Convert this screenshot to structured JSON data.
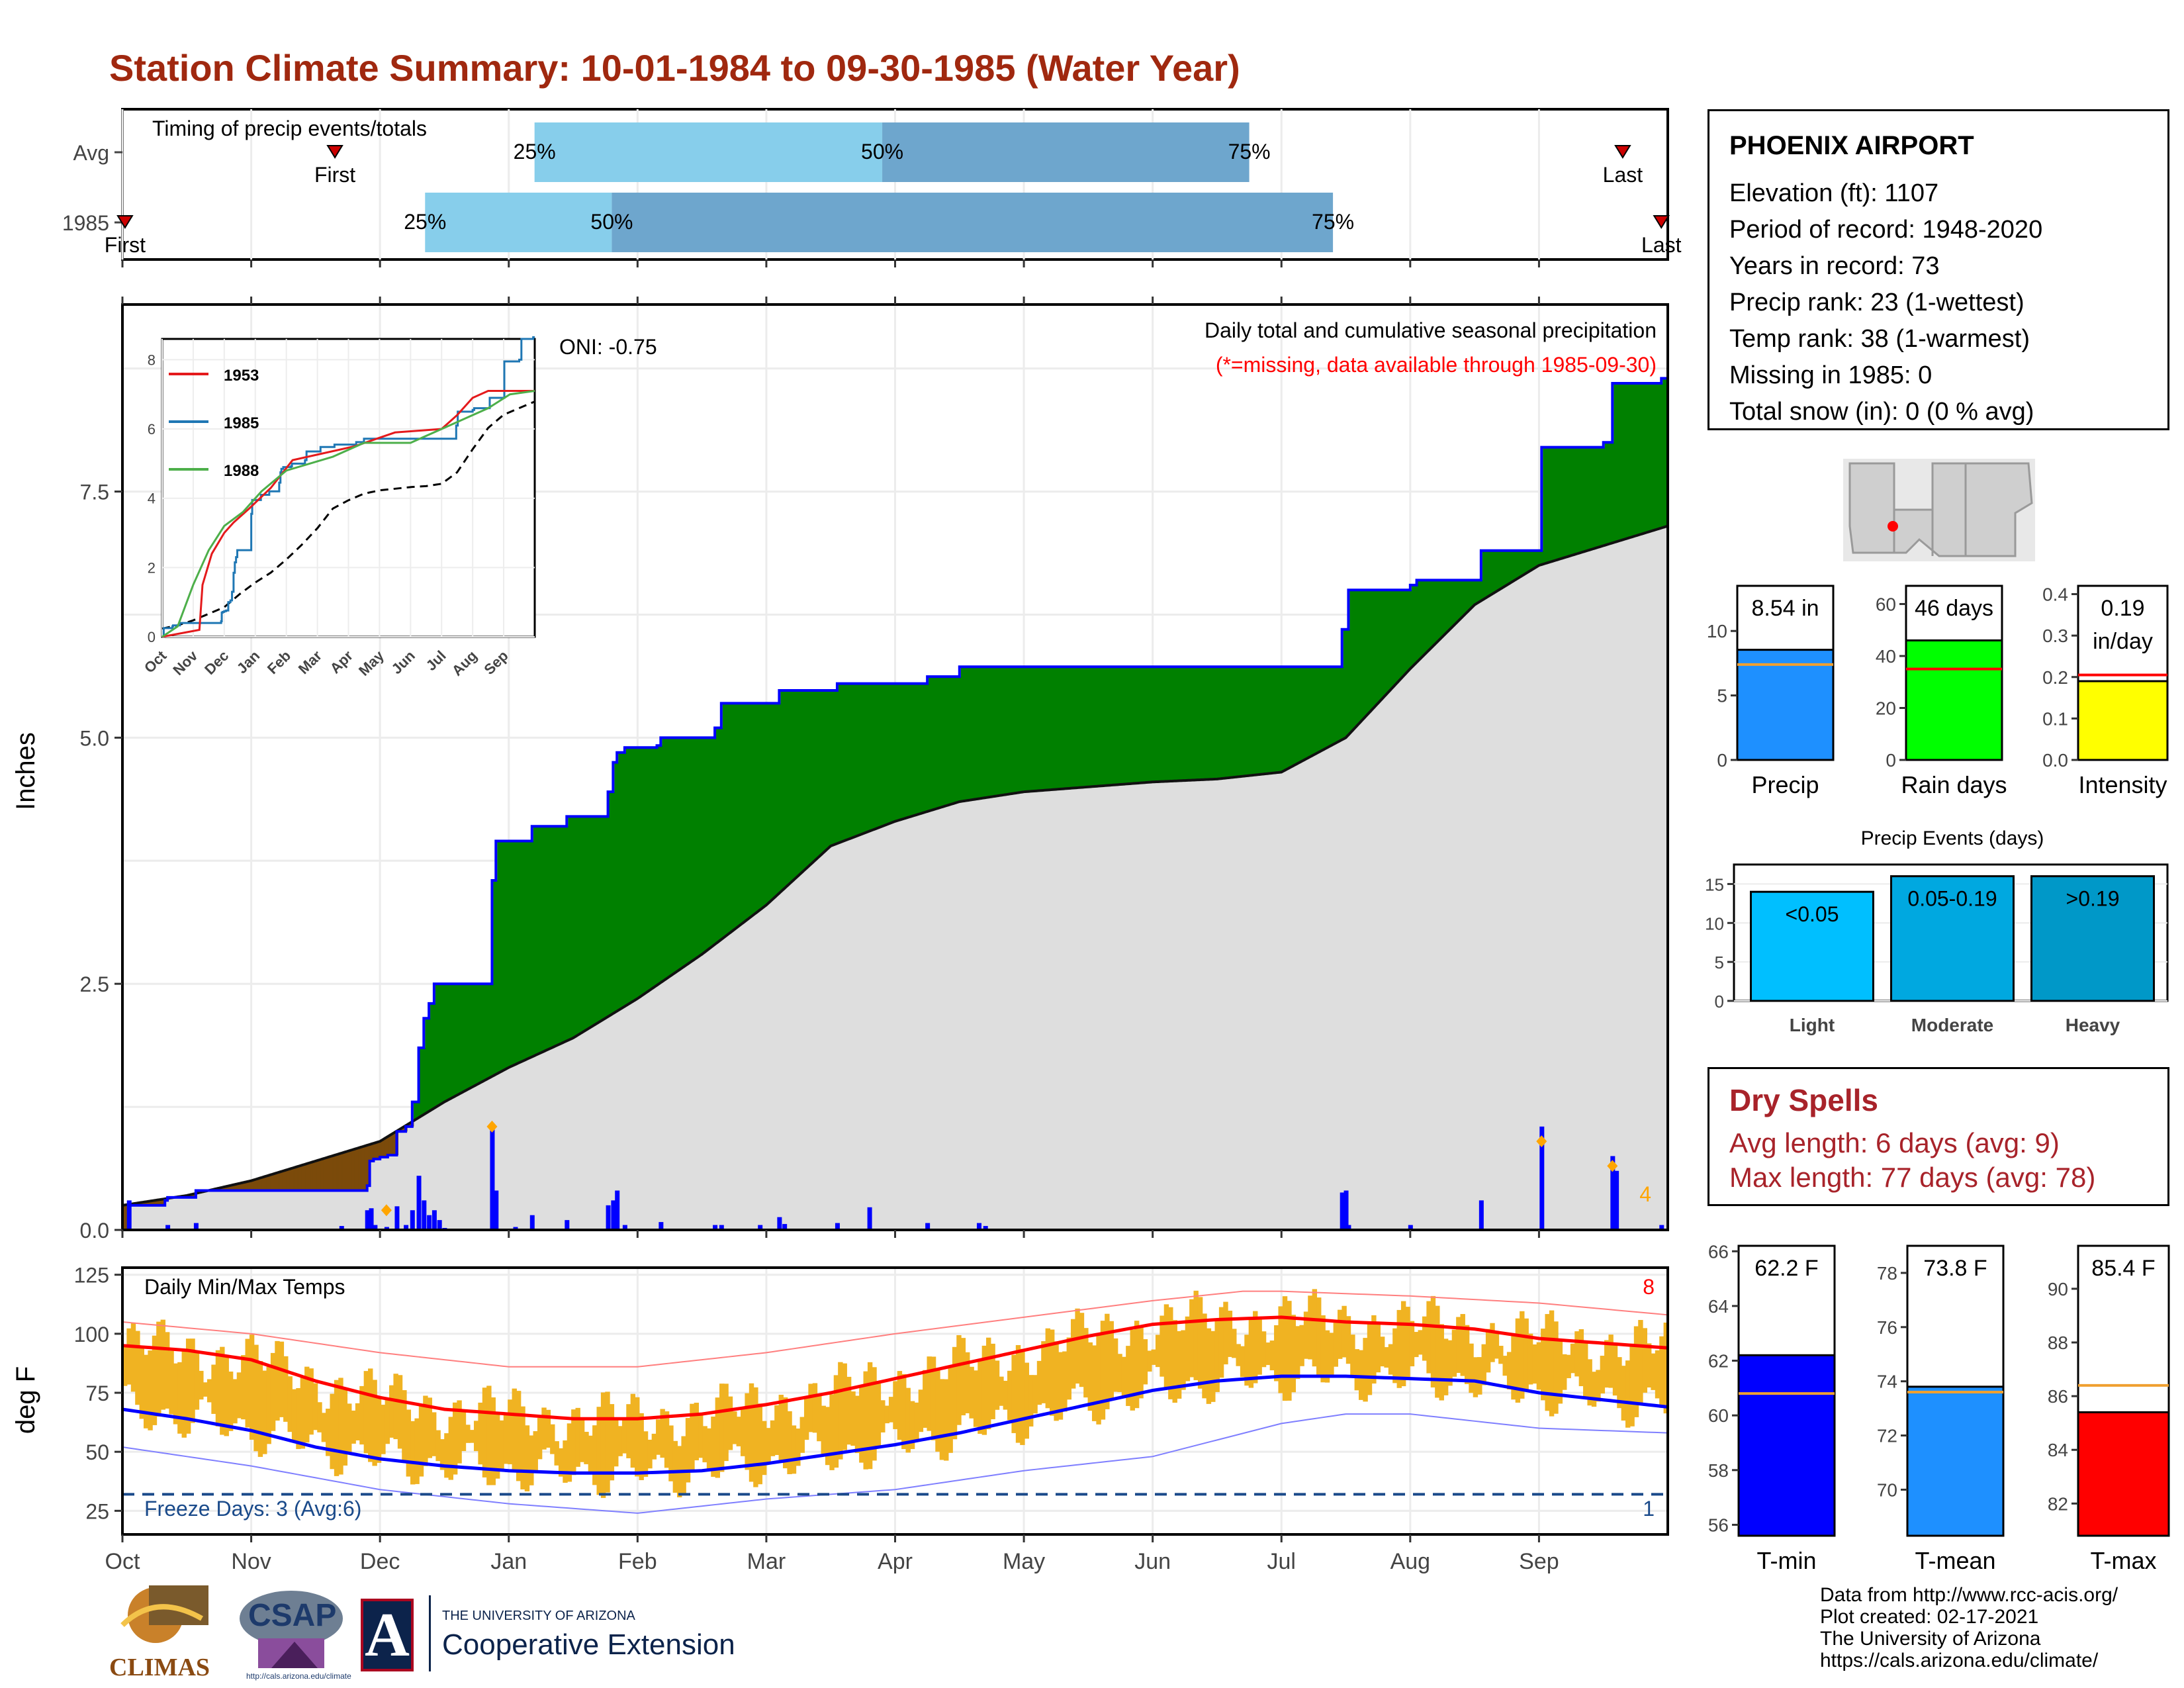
{
  "title": "Station Climate Summary: 10-01-1984 to 09-30-1985 (Water Year)",
  "station": {
    "name": "PHOENIX AIRPORT",
    "lines": [
      "Elevation (ft): 1107",
      "Period of record: 1948-2020",
      "Years in record: 73",
      "Precip rank: 23 (1-wettest)",
      "Temp rank: 38 (1-warmest)",
      "Missing in 1985: 0",
      "Total snow (in): 0 (0 % avg)"
    ]
  },
  "dry_spells": {
    "title": "Dry Spells",
    "avg_length": "Avg length: 6 days (avg: 9)",
    "max_length": "Max length: 77 days (avg: 78)"
  },
  "credits": [
    "Data from http://www.rcc-acis.org/",
    "Plot created: 02-17-2021",
    "The University of Arizona",
    "https://cals.arizona.edu/climate/"
  ],
  "logos": {
    "climas": "CLIMAS",
    "csap": "CSAP",
    "csap_url": "http://cals.arizona.edu/climate",
    "ua_small": "THE UNIVERSITY OF ARIZONA",
    "ua_big": "Cooperative Extension",
    "ua_letter": "A"
  },
  "colors": {
    "title": "#a0280f",
    "green": "#008000",
    "brown": "#7b4a0a",
    "blue": "#0000ff",
    "normal_fill": "#dedede",
    "band_light": "#87ceeb",
    "band_dark": "#6ea6cd",
    "temp_bar": "#f0b322",
    "red": "#ff0000",
    "dry": "#a8232a"
  },
  "chart_data": [
    {
      "id": "timing",
      "type": "bar",
      "title": "Timing of precip events/totals",
      "rows": [
        {
          "label": "Avg",
          "first_month": 1.65,
          "first_text": "First",
          "last_month": 11.65,
          "last_text": "Last",
          "q25": 3.2,
          "q50": 5.9,
          "q75": 8.75
        },
        {
          "label": "1985",
          "first_month": 0.02,
          "first_text": "First",
          "last_month": 11.95,
          "last_text": "Last",
          "q25": 2.35,
          "q50": 3.8,
          "q75": 9.4
        }
      ],
      "quantile_labels": [
        "25%",
        "50%",
        "75%"
      ],
      "x_ticks": [
        "Oct",
        "Nov",
        "Dec",
        "Jan",
        "Feb",
        "Mar",
        "Apr",
        "May",
        "Jun",
        "Jul",
        "Aug",
        "Sep"
      ]
    },
    {
      "id": "precip",
      "type": "area",
      "title": "Daily total and cumulative seasonal precipitation",
      "subtitle": "(*=missing, data available through 1985-09-30)",
      "ylabel": "Inches",
      "ylim": [
        0,
        9.4
      ],
      "yticks": [
        0.0,
        2.5,
        5.0,
        7.5
      ],
      "ytick_labels": [
        "0.0",
        "2.5",
        "5.0",
        "7.5"
      ],
      "oni": "ONI: -0.75",
      "extreme_count": "4",
      "x_ticks": [
        "Oct",
        "Nov",
        "Dec",
        "Jan",
        "Feb",
        "Mar",
        "Apr",
        "May",
        "Jun",
        "Jul",
        "Aug",
        "Sep"
      ],
      "observed_cumulative": [
        [
          0,
          0
        ],
        [
          0.05,
          0.25
        ],
        [
          0.33,
          0.3
        ],
        [
          0.35,
          0.33
        ],
        [
          0.55,
          0.33
        ],
        [
          0.57,
          0.4
        ],
        [
          1.9,
          0.45
        ],
        [
          1.92,
          0.7
        ],
        [
          1.95,
          0.72
        ],
        [
          2.0,
          0.74
        ],
        [
          2.06,
          0.76
        ],
        [
          2.13,
          1.0
        ],
        [
          2.2,
          1.05
        ],
        [
          2.25,
          1.3
        ],
        [
          2.3,
          1.85
        ],
        [
          2.34,
          2.15
        ],
        [
          2.38,
          2.3
        ],
        [
          2.42,
          2.5
        ],
        [
          2.85,
          2.5
        ],
        [
          2.87,
          3.55
        ],
        [
          2.9,
          3.95
        ],
        [
          3.15,
          3.95
        ],
        [
          3.18,
          4.1
        ],
        [
          3.45,
          4.2
        ],
        [
          3.75,
          4.2
        ],
        [
          3.77,
          4.45
        ],
        [
          3.81,
          4.75
        ],
        [
          3.84,
          4.85
        ],
        [
          3.9,
          4.9
        ],
        [
          4.15,
          4.92
        ],
        [
          4.18,
          5.0
        ],
        [
          4.6,
          5.1
        ],
        [
          4.65,
          5.35
        ],
        [
          4.95,
          5.35
        ],
        [
          5.1,
          5.48
        ],
        [
          5.5,
          5.48
        ],
        [
          5.55,
          5.55
        ],
        [
          5.8,
          5.55
        ],
        [
          6.1,
          5.55
        ],
        [
          6.25,
          5.62
        ],
        [
          6.5,
          5.72
        ],
        [
          7.0,
          5.72
        ],
        [
          7.5,
          5.72
        ],
        [
          8.0,
          5.72
        ],
        [
          8.1,
          5.72
        ],
        [
          9.45,
          5.72
        ],
        [
          9.47,
          6.1
        ],
        [
          9.52,
          6.5
        ],
        [
          10.0,
          6.55
        ],
        [
          10.05,
          6.6
        ],
        [
          10.5,
          6.6
        ],
        [
          10.55,
          6.9
        ],
        [
          11.0,
          6.9
        ],
        [
          11.02,
          7.95
        ],
        [
          11.45,
          7.95
        ],
        [
          11.5,
          8.0
        ],
        [
          11.57,
          8.6
        ],
        [
          11.6,
          8.6
        ],
        [
          11.95,
          8.65
        ],
        [
          12,
          8.65
        ]
      ],
      "normal_cumulative": [
        [
          0,
          0.25
        ],
        [
          0.5,
          0.35
        ],
        [
          1,
          0.5
        ],
        [
          1.5,
          0.7
        ],
        [
          2,
          0.9
        ],
        [
          2.5,
          1.3
        ],
        [
          3,
          1.65
        ],
        [
          3.5,
          1.95
        ],
        [
          4,
          2.35
        ],
        [
          4.5,
          2.8
        ],
        [
          5,
          3.3
        ],
        [
          5.5,
          3.9
        ],
        [
          6,
          4.15
        ],
        [
          6.5,
          4.35
        ],
        [
          7,
          4.45
        ],
        [
          7.5,
          4.5
        ],
        [
          8,
          4.55
        ],
        [
          8.5,
          4.58
        ],
        [
          9,
          4.65
        ],
        [
          9.5,
          5.0
        ],
        [
          10,
          5.7
        ],
        [
          10.5,
          6.35
        ],
        [
          11,
          6.75
        ],
        [
          11.5,
          6.95
        ],
        [
          12,
          7.15
        ]
      ],
      "daily_bars": [
        [
          0.05,
          0.3
        ],
        [
          0.35,
          0.05
        ],
        [
          0.57,
          0.07
        ],
        [
          1.7,
          0.04
        ],
        [
          1.9,
          0.2
        ],
        [
          1.93,
          0.22
        ],
        [
          1.96,
          0.05
        ],
        [
          2.05,
          0.03
        ],
        [
          2.13,
          0.24
        ],
        [
          2.2,
          0.05
        ],
        [
          2.25,
          0.2
        ],
        [
          2.3,
          0.55
        ],
        [
          2.34,
          0.3
        ],
        [
          2.38,
          0.15
        ],
        [
          2.42,
          0.2
        ],
        [
          2.46,
          0.1
        ],
        [
          2.5,
          0.02
        ],
        [
          2.87,
          1.05
        ],
        [
          2.9,
          0.4
        ],
        [
          3.05,
          0.03
        ],
        [
          3.18,
          0.15
        ],
        [
          3.45,
          0.1
        ],
        [
          3.77,
          0.25
        ],
        [
          3.81,
          0.3
        ],
        [
          3.84,
          0.4
        ],
        [
          3.9,
          0.05
        ],
        [
          4.18,
          0.08
        ],
        [
          4.6,
          0.05
        ],
        [
          4.65,
          0.05
        ],
        [
          4.95,
          0.05
        ],
        [
          5.1,
          0.13
        ],
        [
          5.14,
          0.06
        ],
        [
          5.55,
          0.07
        ],
        [
          5.8,
          0.23
        ],
        [
          6.25,
          0.07
        ],
        [
          6.65,
          0.07
        ],
        [
          6.7,
          0.04
        ],
        [
          9.47,
          0.38
        ],
        [
          9.5,
          0.4
        ],
        [
          9.52,
          0.05
        ],
        [
          10.0,
          0.05
        ],
        [
          10.55,
          0.3
        ],
        [
          11.02,
          1.05
        ],
        [
          11.57,
          0.75
        ],
        [
          11.6,
          0.6
        ],
        [
          11.95,
          0.05
        ]
      ],
      "extreme_markers": [
        [
          2.05,
          0.2
        ],
        [
          2.87,
          1.05
        ],
        [
          11.02,
          0.9
        ],
        [
          11.57,
          0.65
        ]
      ]
    },
    {
      "id": "temps",
      "type": "bar",
      "title": "Daily Min/Max Temps",
      "ylabel": "deg F",
      "ylim": [
        15,
        128
      ],
      "yticks": [
        25,
        50,
        75,
        100,
        125
      ],
      "freeze_line": 32,
      "freeze_label": "Freeze Days: 3 (Avg:6)",
      "hot_count": "8",
      "cold_count": "1",
      "x_ticks": [
        "Oct",
        "Nov",
        "Dec",
        "Jan",
        "Feb",
        "Mar",
        "Apr",
        "May",
        "Jun",
        "Jul",
        "Aug",
        "Sep"
      ],
      "avg_max": [
        [
          0,
          95
        ],
        [
          0.5,
          93
        ],
        [
          1,
          89
        ],
        [
          1.5,
          80
        ],
        [
          2,
          73
        ],
        [
          2.5,
          68
        ],
        [
          3,
          66
        ],
        [
          3.5,
          64
        ],
        [
          4,
          64
        ],
        [
          4.5,
          66
        ],
        [
          5,
          70
        ],
        [
          5.5,
          75
        ],
        [
          6,
          81
        ],
        [
          6.5,
          87
        ],
        [
          7,
          93
        ],
        [
          7.5,
          99
        ],
        [
          8,
          104
        ],
        [
          8.5,
          106
        ],
        [
          9,
          107
        ],
        [
          9.5,
          105
        ],
        [
          10,
          104
        ],
        [
          10.5,
          102
        ],
        [
          11,
          98
        ],
        [
          11.5,
          96
        ],
        [
          12,
          94
        ]
      ],
      "avg_min": [
        [
          0,
          68
        ],
        [
          0.5,
          64
        ],
        [
          1,
          59
        ],
        [
          1.5,
          52
        ],
        [
          2,
          47
        ],
        [
          2.5,
          44
        ],
        [
          3,
          42
        ],
        [
          3.5,
          41
        ],
        [
          4,
          41
        ],
        [
          4.5,
          42
        ],
        [
          5,
          45
        ],
        [
          5.5,
          49
        ],
        [
          6,
          53
        ],
        [
          6.5,
          58
        ],
        [
          7,
          64
        ],
        [
          7.5,
          70
        ],
        [
          8,
          76
        ],
        [
          8.5,
          80
        ],
        [
          9,
          82
        ],
        [
          9.5,
          82
        ],
        [
          10,
          81
        ],
        [
          10.5,
          80
        ],
        [
          11,
          75
        ],
        [
          11.5,
          72
        ],
        [
          12,
          69
        ]
      ],
      "record_max": [
        [
          0,
          105
        ],
        [
          1,
          100
        ],
        [
          2,
          92
        ],
        [
          3,
          86
        ],
        [
          4,
          86
        ],
        [
          5,
          92
        ],
        [
          6,
          100
        ],
        [
          7,
          107
        ],
        [
          8,
          114
        ],
        [
          8.7,
          118
        ],
        [
          9,
          118
        ],
        [
          9.5,
          117
        ],
        [
          10,
          116
        ],
        [
          11,
          113
        ],
        [
          12,
          108
        ]
      ],
      "record_min": [
        [
          0,
          52
        ],
        [
          1,
          44
        ],
        [
          2,
          34
        ],
        [
          3,
          28
        ],
        [
          4,
          24
        ],
        [
          5,
          30
        ],
        [
          6,
          34
        ],
        [
          7,
          42
        ],
        [
          8,
          48
        ],
        [
          9,
          62
        ],
        [
          9.5,
          66
        ],
        [
          10,
          66
        ],
        [
          11,
          60
        ],
        [
          12,
          58
        ]
      ],
      "daily_range_baseline": "avg"
    },
    {
      "id": "precip_totals",
      "type": "bar",
      "categories": [
        "Precip",
        "Rain days",
        "Intensity"
      ],
      "values": [
        8.54,
        46,
        0.19
      ],
      "labels": [
        "8.54 in",
        "46 days",
        "0.19\nin/day"
      ],
      "averages": [
        7.4,
        35,
        0.205
      ],
      "ylims": [
        [
          0,
          13.5
        ],
        [
          0,
          67
        ],
        [
          0,
          0.42
        ]
      ],
      "yticks": [
        [
          0,
          5,
          10
        ],
        [
          0,
          20,
          40,
          60
        ],
        [
          0.0,
          0.1,
          0.2,
          0.3,
          0.4
        ]
      ],
      "ytick_labels": [
        [
          "0",
          "5",
          "10"
        ],
        [
          "0",
          "20",
          "40",
          "60"
        ],
        [
          "0.0",
          "0.1",
          "0.2",
          "0.3",
          "0.4"
        ]
      ],
      "colors": [
        "#1e90ff",
        "#00ff00",
        "#ffff00"
      ]
    },
    {
      "id": "precip_events",
      "type": "bar",
      "title": "Precip Events (days)",
      "categories": [
        "Light",
        "Moderate",
        "Heavy"
      ],
      "bar_labels": [
        "<0.05",
        "0.05-0.19",
        ">0.19"
      ],
      "values": [
        14,
        16,
        16
      ],
      "ylim": [
        0,
        17.5
      ],
      "yticks": [
        0,
        5,
        10,
        15
      ],
      "colors": [
        "#00bfff",
        "#00a8e0",
        "#0098c8"
      ]
    },
    {
      "id": "temp_totals",
      "type": "bar",
      "categories": [
        "T-min",
        "T-mean",
        "T-max"
      ],
      "values": [
        62.2,
        73.8,
        85.4
      ],
      "labels": [
        "62.2 F",
        "73.8 F",
        "85.4 F"
      ],
      "averages": [
        60.8,
        73.6,
        86.4
      ],
      "ylims": [
        [
          55.6,
          66.2
        ],
        [
          68.3,
          79.0
        ],
        [
          80.8,
          91.6
        ]
      ],
      "yticks": [
        [
          56,
          58,
          60,
          62,
          64,
          66
        ],
        [
          70,
          72,
          74,
          76,
          78
        ],
        [
          82,
          84,
          86,
          88,
          90
        ]
      ],
      "colors": [
        "#0000ff",
        "#1e90ff",
        "#ff0000"
      ]
    }
  ],
  "state_map": {
    "marker": "red-dot"
  }
}
